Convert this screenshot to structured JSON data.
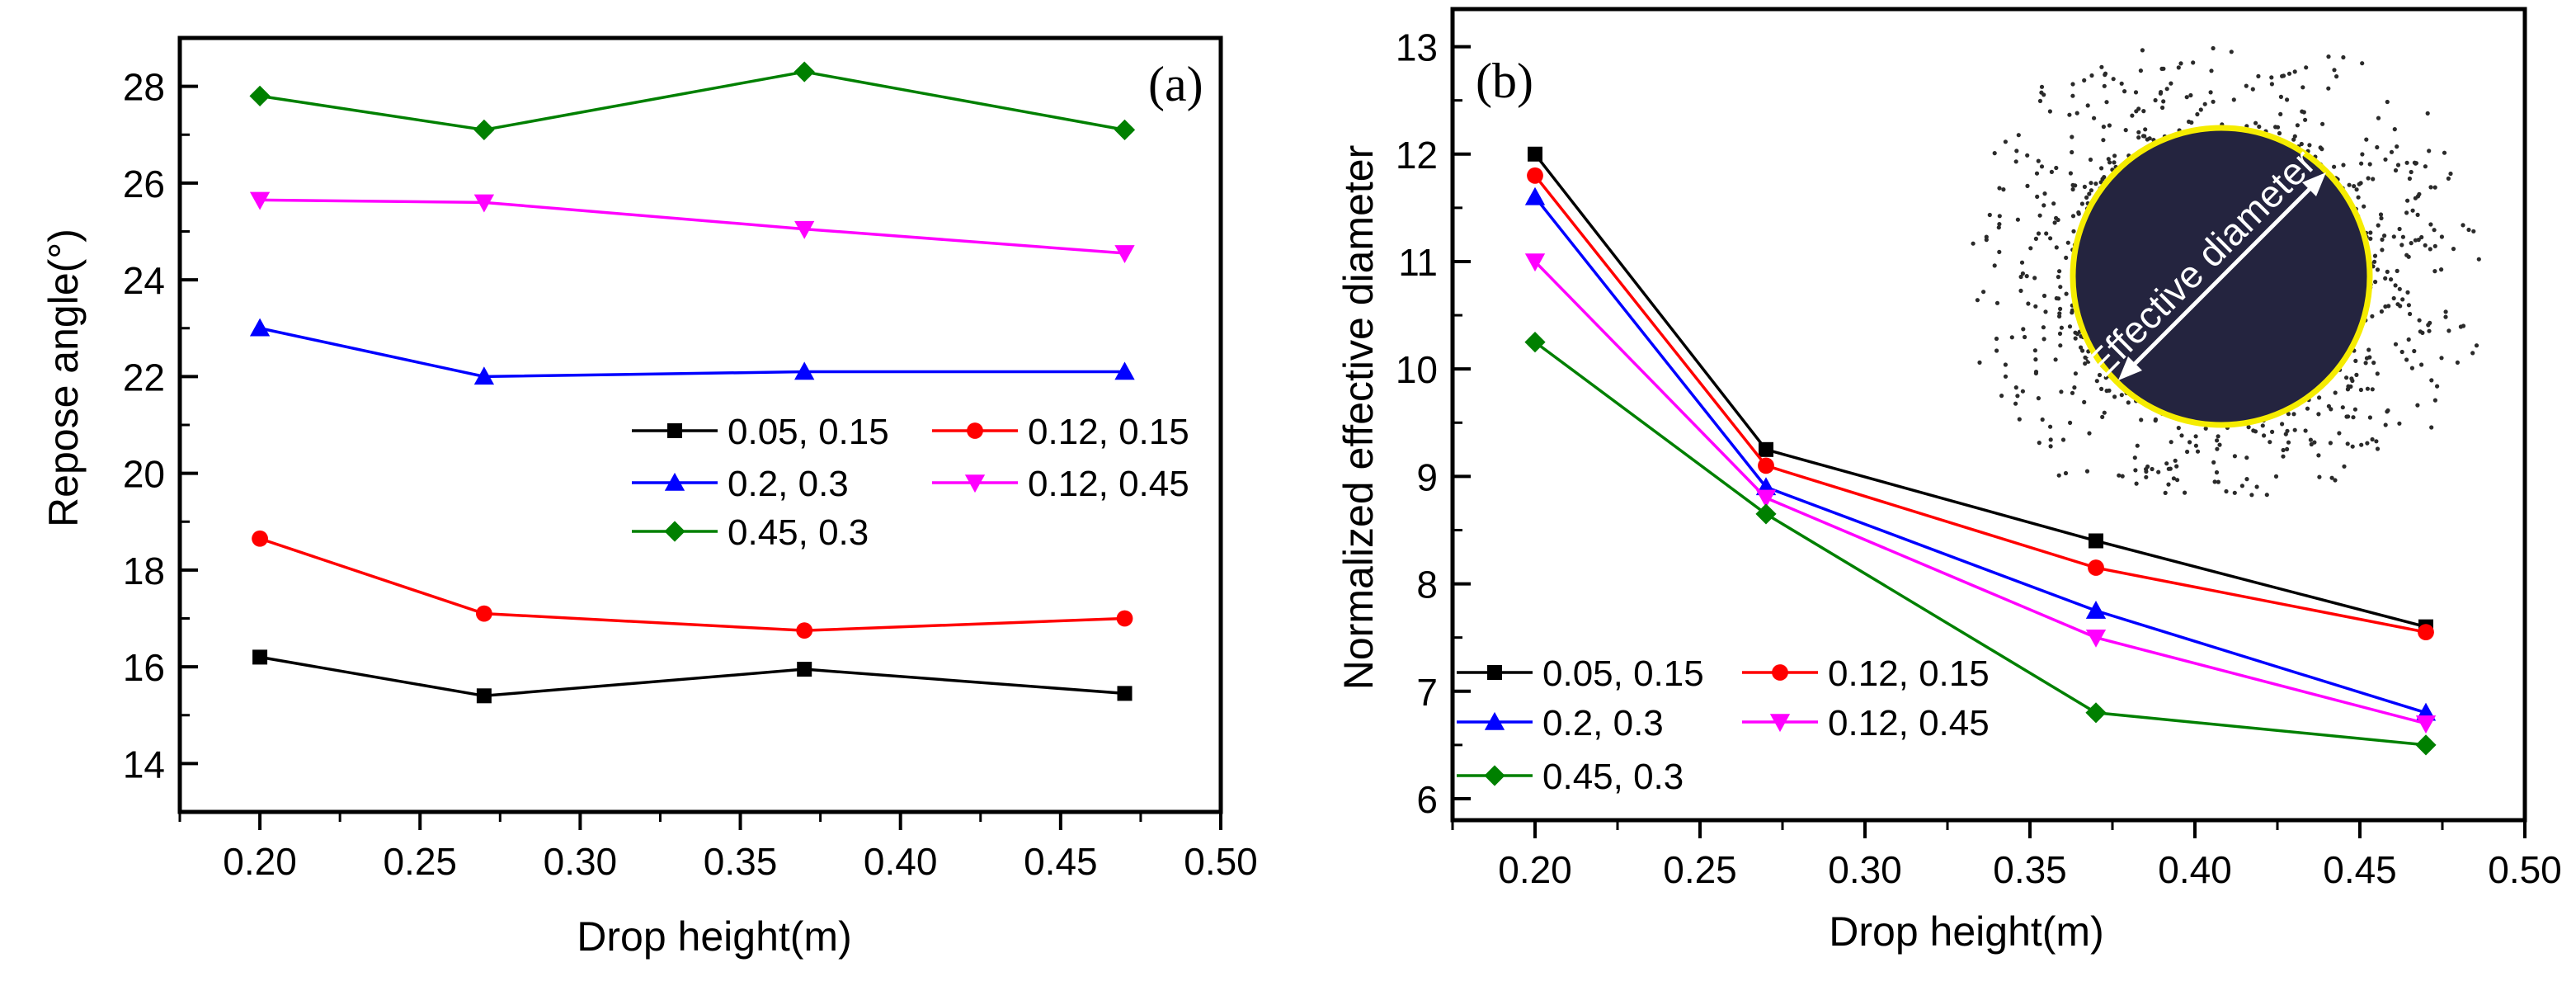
{
  "figure": {
    "colors": {
      "axis": "#000000",
      "s1": "#000000",
      "s2": "#ff0000",
      "s3": "#0000ff",
      "s4": "#ff00ff",
      "s5": "#008000",
      "circle_fill": "#24243f",
      "circle_edge": "#f5ec00",
      "dots": "#2a2a2a"
    }
  },
  "chart_data": [
    {
      "type": "line",
      "panel_label": "(a)",
      "title": "",
      "xlabel": "Drop height(m)",
      "ylabel": "Repose angle(°)",
      "xlim": [
        0.175,
        0.5
      ],
      "ylim": [
        13,
        29
      ],
      "xticks": [
        "0.20",
        "0.25",
        "0.30",
        "0.35",
        "0.40",
        "0.45",
        "0.50"
      ],
      "yticks": [
        "14",
        "16",
        "18",
        "20",
        "22",
        "24",
        "26",
        "28"
      ],
      "x": [
        0.2,
        0.27,
        0.37,
        0.47
      ],
      "legend_position": "center-right",
      "series": [
        {
          "name": "0.05, 0.15",
          "marker": "square",
          "values": [
            16.2,
            15.4,
            15.95,
            15.45
          ]
        },
        {
          "name": "0.12, 0.15",
          "marker": "circle",
          "values": [
            18.65,
            17.1,
            16.75,
            17.0
          ]
        },
        {
          "name": "0.2, 0.3",
          "marker": "triangle-up",
          "values": [
            23.0,
            22.0,
            22.1,
            22.1
          ]
        },
        {
          "name": "0.12, 0.45",
          "marker": "triangle-down",
          "values": [
            25.65,
            25.6,
            25.05,
            24.55
          ]
        },
        {
          "name": "0.45, 0.3",
          "marker": "diamond",
          "values": [
            27.8,
            27.1,
            28.3,
            27.1
          ]
        }
      ]
    },
    {
      "type": "line",
      "panel_label": "(b)",
      "title": "",
      "xlabel": "Drop height(m)",
      "ylabel": "Normalized effective diameter",
      "xlim": [
        0.175,
        0.5
      ],
      "ylim": [
        5.8,
        13.35
      ],
      "xticks": [
        "0.20",
        "0.25",
        "0.30",
        "0.35",
        "0.40",
        "0.45",
        "0.50"
      ],
      "yticks": [
        "6",
        "7",
        "8",
        "9",
        "10",
        "11",
        "12",
        "13"
      ],
      "x": [
        0.2,
        0.27,
        0.37,
        0.47
      ],
      "legend_position": "bottom-left",
      "inset_label": "Effective diameter",
      "series": [
        {
          "name": "0.05, 0.15",
          "marker": "square",
          "values": [
            12.0,
            9.25,
            8.4,
            7.6
          ]
        },
        {
          "name": "0.12, 0.15",
          "marker": "circle",
          "values": [
            11.8,
            9.1,
            8.15,
            7.55
          ]
        },
        {
          "name": "0.2, 0.3",
          "marker": "triangle-up",
          "values": [
            11.6,
            8.9,
            7.75,
            6.8
          ]
        },
        {
          "name": "0.12, 0.45",
          "marker": "triangle-down",
          "values": [
            11.0,
            8.8,
            7.5,
            6.7
          ]
        },
        {
          "name": "0.45, 0.3",
          "marker": "diamond",
          "values": [
            10.25,
            8.65,
            6.8,
            6.5
          ]
        }
      ]
    }
  ]
}
